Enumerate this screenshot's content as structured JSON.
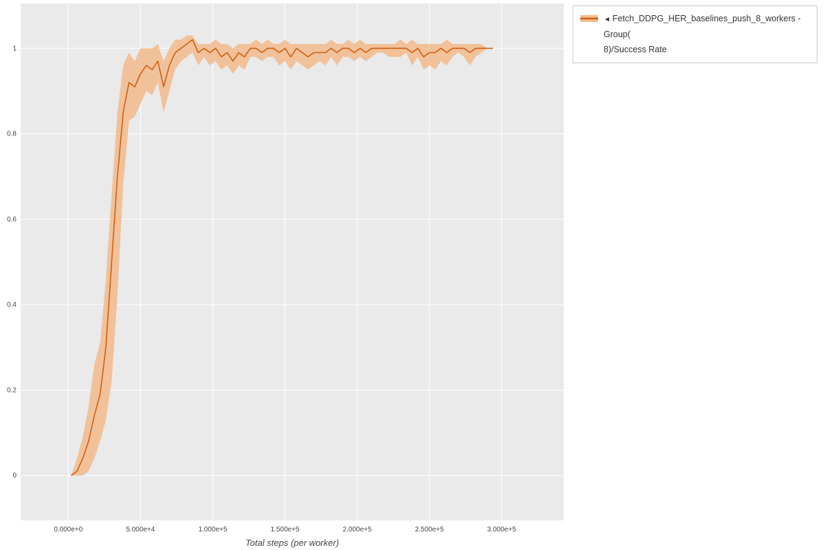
{
  "legend": {
    "toggle_icon": "◄",
    "series_label_line1": "Fetch_DDPG_HER_baselines_push_8_workers - Group(",
    "series_label_line2": "8)/Success Rate"
  },
  "chart_data": {
    "type": "line",
    "title": "",
    "xlabel": "Total steps (per worker)",
    "ylabel": "",
    "legend_position": "top-right-outside",
    "grid": true,
    "plot_bg": "#eaeaea",
    "grid_color": "#ffffff",
    "tick_color": "#444444",
    "xlim": [
      -33000,
      343000
    ],
    "ylim": [
      -0.105,
      1.105
    ],
    "x_ticks": {
      "values": [
        0,
        50000,
        100000,
        150000,
        200000,
        250000,
        300000
      ],
      "labels": [
        "0.000e+0",
        "5.000e+4",
        "1.000e+5",
        "1.500e+5",
        "2.000e+5",
        "2.500e+5",
        "3.000e+5"
      ]
    },
    "y_ticks": {
      "values": [
        0,
        0.2,
        0.4,
        0.6,
        0.8,
        1
      ],
      "labels": [
        "0",
        "0.2",
        "0.4",
        "0.6",
        "0.8",
        "1"
      ]
    },
    "series": [
      {
        "name": "Fetch_DDPG_HER_baselines_push_8_workers - Group(8)/Success Rate",
        "line_color": "#cf5f10",
        "band_color": "#f2bd90",
        "x": [
          2000,
          6000,
          10000,
          14000,
          18000,
          22000,
          26000,
          30000,
          34000,
          38000,
          42000,
          46000,
          50000,
          54000,
          58000,
          62000,
          66000,
          70000,
          74000,
          78000,
          82000,
          86000,
          90000,
          94000,
          98000,
          102000,
          106000,
          110000,
          114000,
          118000,
          122000,
          126000,
          130000,
          134000,
          138000,
          142000,
          146000,
          150000,
          154000,
          158000,
          162000,
          166000,
          170000,
          174000,
          178000,
          182000,
          186000,
          190000,
          194000,
          198000,
          202000,
          206000,
          210000,
          214000,
          218000,
          222000,
          226000,
          230000,
          234000,
          238000,
          242000,
          246000,
          250000,
          254000,
          258000,
          262000,
          266000,
          270000,
          274000,
          278000,
          282000,
          286000,
          290000,
          294000
        ],
        "y": [
          0.0,
          0.01,
          0.04,
          0.08,
          0.14,
          0.19,
          0.3,
          0.5,
          0.7,
          0.85,
          0.92,
          0.91,
          0.94,
          0.96,
          0.95,
          0.97,
          0.91,
          0.96,
          0.99,
          1.0,
          1.01,
          1.02,
          0.99,
          1.0,
          0.99,
          1.0,
          0.98,
          0.99,
          0.97,
          0.99,
          0.98,
          1.0,
          1.0,
          0.99,
          1.0,
          1.0,
          0.99,
          1.0,
          0.98,
          1.0,
          0.99,
          0.98,
          0.99,
          0.99,
          0.99,
          1.0,
          0.99,
          1.0,
          1.0,
          0.99,
          1.0,
          0.99,
          1.0,
          1.0,
          1.0,
          1.0,
          1.0,
          1.0,
          1.0,
          0.99,
          1.0,
          0.98,
          0.99,
          0.99,
          1.0,
          0.99,
          1.0,
          1.0,
          1.0,
          0.99,
          1.0,
          1.0,
          1.0,
          1.0
        ],
        "y_lower": [
          0.0,
          0.0,
          0.0,
          0.01,
          0.04,
          0.08,
          0.13,
          0.22,
          0.42,
          0.68,
          0.83,
          0.84,
          0.87,
          0.9,
          0.89,
          0.92,
          0.85,
          0.9,
          0.95,
          0.97,
          0.98,
          0.99,
          0.96,
          0.98,
          0.96,
          0.97,
          0.95,
          0.96,
          0.94,
          0.96,
          0.95,
          0.98,
          0.98,
          0.97,
          0.98,
          0.98,
          0.96,
          0.97,
          0.95,
          0.97,
          0.96,
          0.95,
          0.96,
          0.97,
          0.96,
          0.98,
          0.96,
          0.98,
          0.98,
          0.97,
          0.98,
          0.97,
          0.98,
          0.99,
          0.99,
          0.98,
          0.98,
          0.98,
          0.99,
          0.96,
          0.98,
          0.95,
          0.96,
          0.95,
          0.97,
          0.96,
          0.98,
          0.99,
          0.98,
          0.96,
          0.98,
          0.99,
          1.0,
          1.0
        ],
        "y_upper": [
          0.0,
          0.04,
          0.09,
          0.16,
          0.26,
          0.31,
          0.46,
          0.66,
          0.85,
          0.96,
          0.99,
          0.97,
          1.0,
          1.0,
          1.0,
          1.01,
          0.97,
          1.0,
          1.02,
          1.02,
          1.03,
          1.03,
          1.01,
          1.01,
          1.01,
          1.02,
          1.01,
          1.01,
          1.0,
          1.01,
          1.01,
          1.01,
          1.02,
          1.01,
          1.02,
          1.01,
          1.01,
          1.02,
          1.01,
          1.01,
          1.01,
          1.01,
          1.01,
          1.01,
          1.01,
          1.02,
          1.01,
          1.01,
          1.02,
          1.01,
          1.02,
          1.01,
          1.01,
          1.01,
          1.01,
          1.01,
          1.01,
          1.02,
          1.01,
          1.02,
          1.01,
          1.01,
          1.01,
          1.01,
          1.01,
          1.02,
          1.01,
          1.01,
          1.01,
          1.01,
          1.01,
          1.01,
          1.0,
          1.0
        ]
      }
    ]
  }
}
